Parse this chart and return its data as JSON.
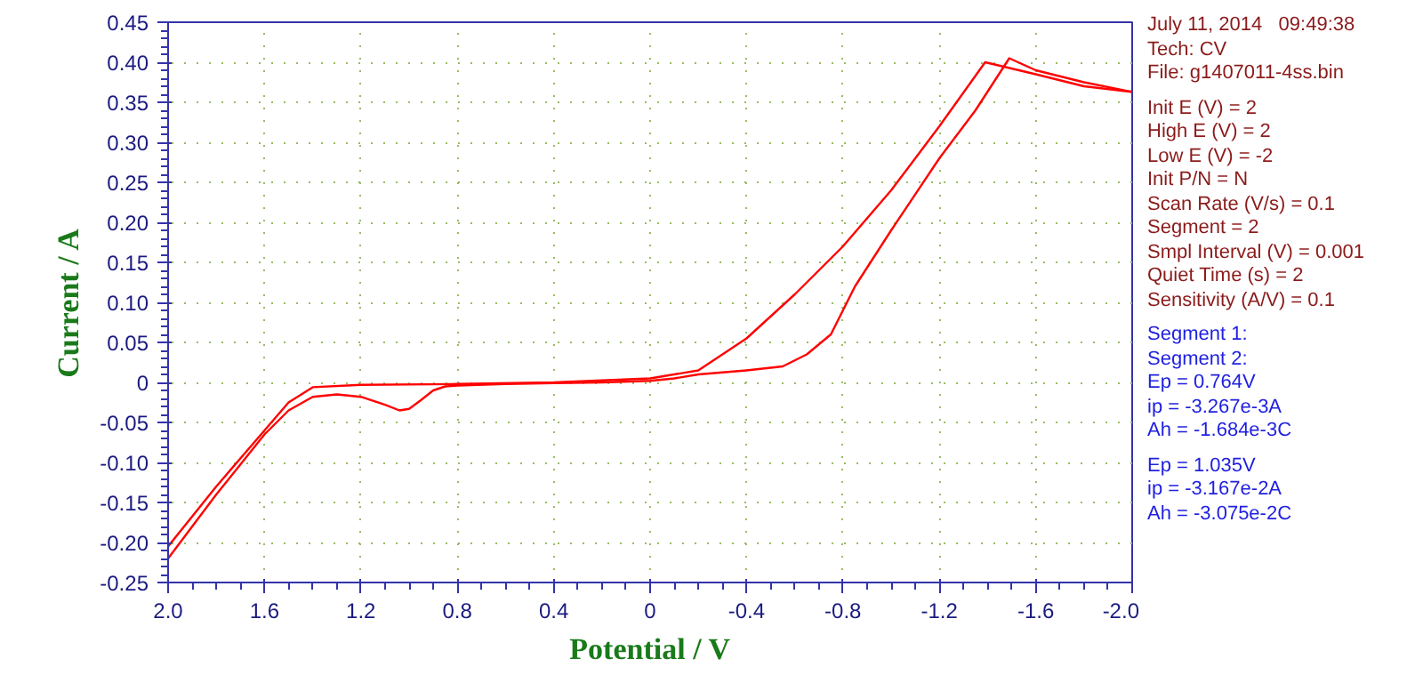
{
  "chart_data": {
    "type": "line",
    "xlabel": "Potential / V",
    "ylabel": "Current / A",
    "xlim": [
      2.0,
      -2.0
    ],
    "ylim": [
      -0.25,
      0.45
    ],
    "xticks": [
      {
        "value": 2.0,
        "label": "2.0"
      },
      1.6,
      1.2,
      0.8,
      0.4,
      0,
      -0.4,
      -0.8,
      -1.2,
      -1.6,
      {
        "value": -2.0,
        "label": "-2.0"
      }
    ],
    "yticks": [
      {
        "value": -0.25,
        "label": "-0.25"
      },
      {
        "value": -0.2,
        "label": "-0.20"
      },
      {
        "value": -0.15,
        "label": "-0.15"
      },
      {
        "value": -0.1,
        "label": "-0.10"
      },
      {
        "value": -0.05,
        "label": "-0.05"
      },
      0,
      {
        "value": 0.05,
        "label": "0.05"
      },
      {
        "value": 0.1,
        "label": "0.10"
      },
      {
        "value": 0.15,
        "label": "0.15"
      },
      {
        "value": 0.2,
        "label": "0.20"
      },
      {
        "value": 0.25,
        "label": "0.25"
      },
      {
        "value": 0.3,
        "label": "0.30"
      },
      {
        "value": 0.35,
        "label": "0.35"
      },
      {
        "value": 0.4,
        "label": "0.40"
      },
      {
        "value": 0.45,
        "label": "0.45"
      }
    ],
    "grid": true,
    "marker": "none",
    "line_style": "solid",
    "series": [
      {
        "color": "#ff0000",
        "x": [
          2.0,
          1.8,
          1.6,
          1.5,
          1.4,
          1.3,
          1.2,
          1.1,
          1.04,
          1.0,
          0.95,
          0.9,
          0.85,
          0.8,
          0.6,
          0.4,
          0.2,
          0.0,
          -0.1,
          -0.2,
          -0.4,
          -0.55,
          -0.65,
          -0.75,
          -0.8,
          -0.85,
          -1.0,
          -1.2,
          -1.35,
          -1.49,
          -1.6,
          -1.8,
          -2.0
        ],
        "values": [
          -0.22,
          -0.14,
          -0.065,
          -0.035,
          -0.018,
          -0.015,
          -0.018,
          -0.028,
          -0.035,
          -0.033,
          -0.022,
          -0.01,
          -0.005,
          -0.004,
          -0.002,
          -0.001,
          0.0,
          0.002,
          0.005,
          0.01,
          0.015,
          0.02,
          0.035,
          0.06,
          0.09,
          0.12,
          0.19,
          0.28,
          0.34,
          0.405,
          0.39,
          0.375,
          0.363
        ]
      },
      {
        "color": "#ff0000",
        "x": [
          -2.0,
          -1.8,
          -1.6,
          -1.39,
          -1.2,
          -1.0,
          -0.8,
          -0.6,
          -0.4,
          -0.2,
          0.0,
          0.4,
          0.8,
          1.2,
          1.4,
          1.5,
          1.6,
          1.8,
          2.0
        ],
        "values": [
          0.363,
          0.37,
          0.385,
          0.4,
          0.32,
          0.24,
          0.17,
          0.11,
          0.055,
          0.015,
          0.005,
          0.0,
          -0.002,
          -0.003,
          -0.006,
          -0.025,
          -0.06,
          -0.13,
          -0.205
        ]
      }
    ],
    "annotations": [
      "July 11, 2014   09:49:38",
      "Tech: CV",
      "File: g1407011-4ss.bin",
      "Init E (V) = 2",
      "High E (V) = 2",
      "Low E (V) = -2",
      "Init P/N = N",
      "Scan Rate (V/s) = 0.1",
      "Segment = 2",
      "Smpl Interval (V) = 0.001",
      "Quiet Time (s) = 2",
      "Sensitivity (A/V) = 0.1",
      "Segment 1:",
      "Segment 2:",
      "Ep = 0.764V",
      "ip = -3.267e-3A",
      "Ah = -1.684e-3C",
      "Ep = 1.035V",
      "ip = -3.167e-2A",
      "Ah = -3.075e-2C"
    ]
  }
}
